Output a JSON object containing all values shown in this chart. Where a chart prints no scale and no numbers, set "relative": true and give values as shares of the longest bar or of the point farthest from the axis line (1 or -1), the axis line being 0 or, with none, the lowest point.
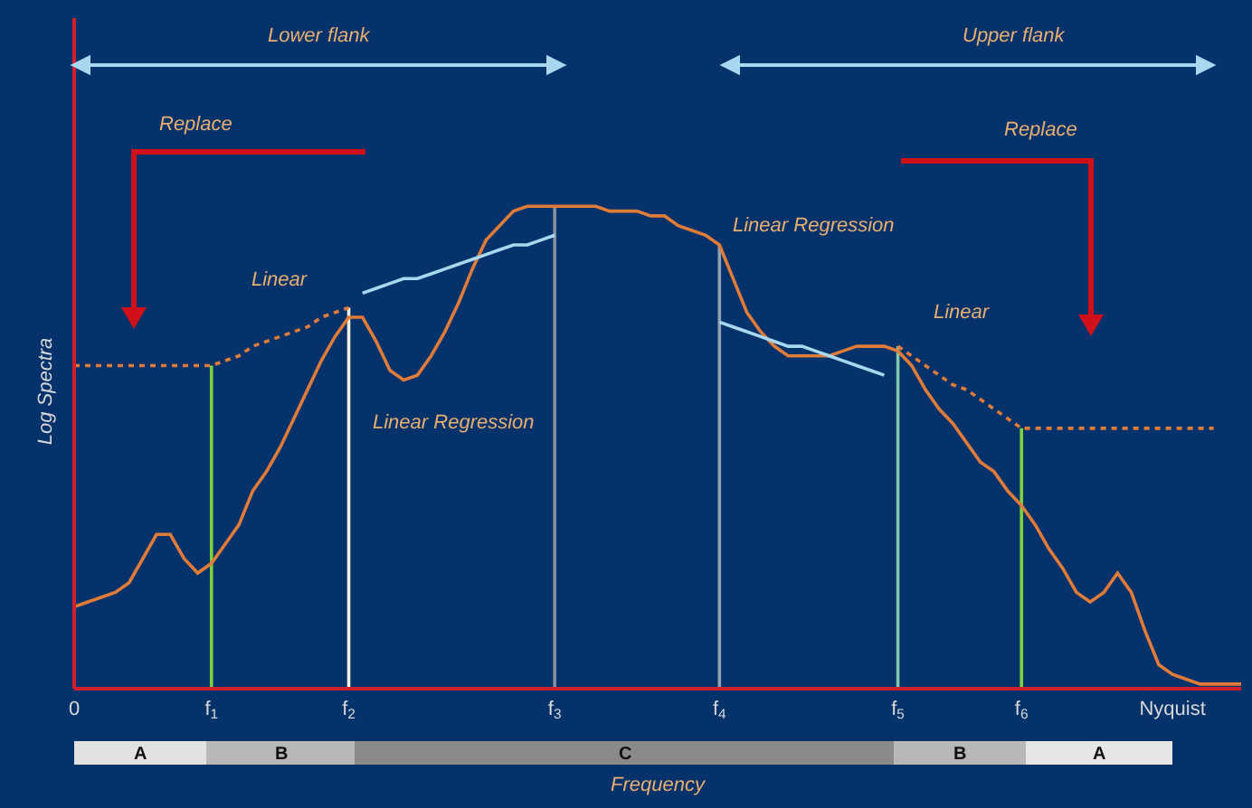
{
  "chart_data": {
    "type": "line",
    "relative": true,
    "xlabel": "Frequency",
    "ylabel": "Log Spectra",
    "categories": [
      "0",
      null,
      null,
      null,
      null,
      null,
      null,
      null,
      null,
      null,
      "f$_{1}$",
      null,
      null,
      null,
      null,
      null,
      null,
      null,
      null,
      null,
      "f$_{2}$",
      null,
      null,
      null,
      null,
      null,
      null,
      null,
      null,
      null,
      null,
      null,
      null,
      null,
      null,
      "f$_{3}$",
      null,
      null,
      null,
      null,
      null,
      null,
      null,
      null,
      null,
      null,
      null,
      "f$_{4}$",
      null,
      null,
      null,
      null,
      null,
      null,
      null,
      null,
      null,
      null,
      null,
      null,
      "f$_{5}$",
      null,
      null,
      null,
      null,
      null,
      null,
      null,
      null,
      "f$_{6}$",
      null,
      null,
      null,
      null,
      null,
      null,
      null,
      null,
      null,
      null,
      "Nyquist",
      null,
      null,
      null,
      null,
      null
    ],
    "series": [
      {
        "color": "#e07b39",
        "line_style": "solid",
        "values": [
          0.17,
          0.18,
          0.19,
          0.2,
          0.22,
          0.27,
          0.32,
          0.32,
          0.27,
          0.24,
          0.26,
          0.3,
          0.34,
          0.41,
          0.45,
          0.5,
          0.56,
          0.62,
          0.68,
          0.73,
          0.77,
          0.77,
          0.72,
          0.66,
          0.64,
          0.65,
          0.69,
          0.74,
          0.8,
          0.87,
          0.93,
          0.96,
          0.99,
          1,
          1,
          1,
          1,
          1,
          1,
          0.99,
          0.99,
          0.99,
          0.98,
          0.98,
          0.96,
          0.95,
          0.94,
          0.92,
          0.85,
          0.78,
          0.74,
          0.71,
          0.69,
          0.69,
          0.69,
          0.69,
          0.7,
          0.71,
          0.71,
          0.71,
          0.7,
          0.67,
          0.62,
          0.58,
          0.55,
          0.51,
          0.47,
          0.45,
          0.41,
          0.38,
          0.34,
          0.29,
          0.25,
          0.2,
          0.18,
          0.2,
          0.24,
          0.2,
          0.12,
          0.05,
          0.03,
          0.02,
          0.01,
          0.01,
          0.01,
          0.01
        ]
      },
      {
        "color": "#e07b39",
        "line_style": "dotted",
        "values": [
          0.67,
          0.67,
          0.67,
          0.67,
          0.67,
          0.67,
          0.67,
          0.67,
          0.67,
          0.67,
          0.67,
          0.68,
          0.69,
          0.71,
          0.72,
          0.73,
          0.74,
          0.75,
          0.77,
          0.78,
          0.79,
          null,
          null,
          null,
          null,
          null,
          null,
          null,
          null,
          null,
          null,
          null,
          null,
          null,
          null,
          null,
          null,
          null,
          null,
          null,
          null,
          null,
          null,
          null,
          null,
          null,
          null,
          null,
          null,
          null,
          null,
          null,
          null,
          null,
          null,
          null,
          null,
          null,
          null,
          null,
          null,
          null,
          null,
          null,
          null,
          null,
          null,
          null,
          null,
          null,
          null,
          null,
          null,
          null,
          null,
          null,
          null,
          null,
          null,
          null,
          null,
          null,
          null,
          null,
          null,
          null
        ]
      },
      {
        "color": "#e07b39",
        "line_style": "dotted",
        "values": [
          null,
          null,
          null,
          null,
          null,
          null,
          null,
          null,
          null,
          null,
          null,
          null,
          null,
          null,
          null,
          null,
          null,
          null,
          null,
          null,
          null,
          null,
          null,
          null,
          null,
          null,
          null,
          null,
          null,
          null,
          null,
          null,
          null,
          null,
          null,
          null,
          null,
          null,
          null,
          null,
          null,
          null,
          null,
          null,
          null,
          null,
          null,
          null,
          null,
          null,
          null,
          null,
          null,
          null,
          null,
          null,
          null,
          null,
          null,
          null,
          0.71,
          0.69,
          0.67,
          0.65,
          0.63,
          0.62,
          0.6,
          0.58,
          0.56,
          0.54,
          0.54,
          0.54,
          0.54,
          0.54,
          0.54,
          0.54,
          0.54,
          0.54,
          0.54,
          0.54,
          0.54,
          0.54,
          0.54,
          0.54,
          null,
          null
        ]
      },
      {
        "color": "#a8d8f0",
        "line_style": "solid",
        "values": [
          null,
          null,
          null,
          null,
          null,
          null,
          null,
          null,
          null,
          null,
          null,
          null,
          null,
          null,
          null,
          null,
          null,
          null,
          null,
          null,
          null,
          0.82,
          0.83,
          0.84,
          0.85,
          0.85,
          0.86,
          0.87,
          0.88,
          0.89,
          0.9,
          0.91,
          0.92,
          0.92,
          0.93,
          0.94,
          null,
          null,
          null,
          null,
          null,
          null,
          null,
          null,
          null,
          null,
          null,
          null,
          null,
          null,
          null,
          null,
          null,
          null,
          null,
          null,
          null,
          null,
          null,
          null,
          null,
          null,
          null,
          null,
          null,
          null,
          null,
          null,
          null,
          null,
          null,
          null,
          null,
          null,
          null,
          null,
          null,
          null,
          null,
          null,
          null,
          null,
          null,
          null,
          null,
          null
        ]
      },
      {
        "color": "#a8d8f0",
        "line_style": "solid",
        "values": [
          null,
          null,
          null,
          null,
          null,
          null,
          null,
          null,
          null,
          null,
          null,
          null,
          null,
          null,
          null,
          null,
          null,
          null,
          null,
          null,
          null,
          null,
          null,
          null,
          null,
          null,
          null,
          null,
          null,
          null,
          null,
          null,
          null,
          null,
          null,
          null,
          null,
          null,
          null,
          null,
          null,
          null,
          null,
          null,
          null,
          null,
          null,
          0.76,
          0.75,
          0.74,
          0.73,
          0.72,
          0.71,
          0.71,
          0.7,
          0.69,
          0.68,
          0.67,
          0.66,
          0.65,
          null,
          null,
          null,
          null,
          null,
          null,
          null,
          null,
          null,
          null,
          null,
          null,
          null,
          null,
          null,
          null,
          null,
          null,
          null,
          null,
          null,
          null,
          null,
          null,
          null,
          null
        ]
      }
    ],
    "ref_lines": [
      {
        "axis": "x",
        "value": "f$_{1}$",
        "color": "#7fd13b"
      },
      {
        "axis": "x",
        "value": "f$_{2}$",
        "color": "#f0f0d8"
      },
      {
        "axis": "x",
        "value": "f$_{3}$",
        "color": "#8a8f99"
      },
      {
        "axis": "x",
        "value": "f$_{4}$",
        "color": "#8da0b8"
      },
      {
        "axis": "x",
        "value": "f$_{5}$",
        "color": "#7fc8b0"
      },
      {
        "axis": "x",
        "value": "f$_{6}$",
        "color": "#7fd13b"
      }
    ],
    "annotations": [
      "Lower flank",
      "Upper flank",
      "Replace",
      "Replace",
      "Linear",
      "Linear",
      "Linear Regression",
      "Linear Regression",
      "A",
      "B",
      "C",
      "B",
      "A"
    ]
  }
}
